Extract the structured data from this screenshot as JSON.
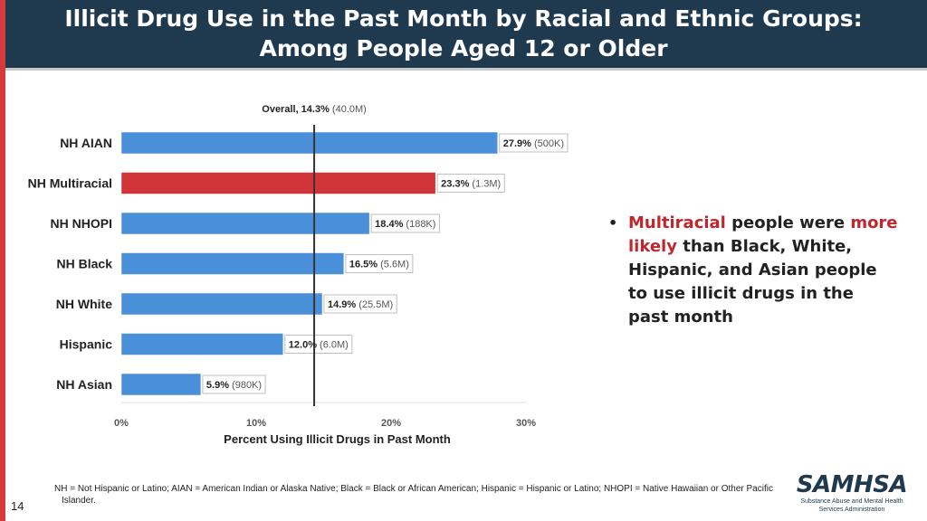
{
  "header": {
    "title_line1": "Illicit Drug Use in the Past Month by Racial and Ethnic Groups:",
    "title_line2": "Among People Aged 12 or Older"
  },
  "colors": {
    "header_bg": "#1f3a4f",
    "bar_default": "#4a90d9",
    "bar_highlight": "#d13438",
    "accent_red": "#c0272d"
  },
  "chart_data": {
    "type": "bar",
    "orientation": "horizontal",
    "categories": [
      "NH AIAN",
      "NH Multiracial",
      "NH NHOPI",
      "NH Black",
      "NH White",
      "Hispanic",
      "NH Asian"
    ],
    "values": [
      27.9,
      23.3,
      18.4,
      16.5,
      14.9,
      12.0,
      5.9
    ],
    "value_labels": [
      "27.9%",
      "23.3%",
      "18.4%",
      "16.5%",
      "14.9%",
      "12.0%",
      "5.9%"
    ],
    "count_labels": [
      "(500K)",
      "(1.3M)",
      "(188K)",
      "(5.6M)",
      "(25.5M)",
      "(6.0M)",
      "(980K)"
    ],
    "highlight_index": 1,
    "reference_line": {
      "value": 14.3,
      "label_bold": "Overall, 14.3%",
      "label_count": "(40.0M)"
    },
    "xlim": [
      0,
      30
    ],
    "xticks": [
      0,
      10,
      20,
      30
    ],
    "xtick_labels": [
      "0%",
      "10%",
      "20%",
      "30%"
    ],
    "xlabel": "Percent Using Illicit Drugs in Past Month",
    "ylabel": "",
    "grid": false
  },
  "bullet": {
    "dot": "•",
    "part1": "Multiracial",
    "part2": " people were ",
    "part3": "more likely",
    "part4": " than Black, White, Hispanic, and Asian people to use illicit drugs in the past month"
  },
  "footnote": "NH = Not Hispanic or Latino; AIAN = American Indian or Alaska Native; Black = Black or African American; Hispanic = Hispanic or Latino; NHOPI = Native Hawaiian or Other Pacific Islander.",
  "page_number": "14",
  "logo": {
    "name": "SAMHSA",
    "subtitle_line1": "Substance Abuse and Mental Health",
    "subtitle_line2": "Services Administration"
  }
}
